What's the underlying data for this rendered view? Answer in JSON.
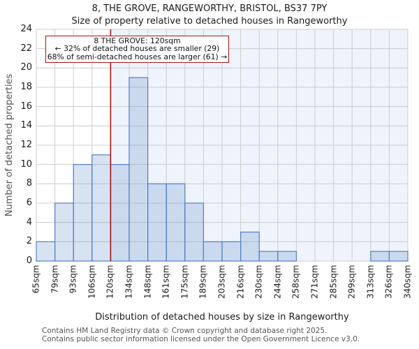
{
  "chart_data": {
    "type": "bar",
    "title": "8, THE GROVE, RANGEWORTHY, BRISTOL, BS37 7PY",
    "subtitle": "Size of property relative to detached houses in Rangeworthy",
    "xlabel": "Distribution of detached houses by size in Rangeworthy",
    "ylabel": "Number of detached properties",
    "bin_edges": [
      "65sqm",
      "79sqm",
      "93sqm",
      "106sqm",
      "120sqm",
      "134sqm",
      "148sqm",
      "161sqm",
      "175sqm",
      "189sqm",
      "203sqm",
      "216sqm",
      "230sqm",
      "244sqm",
      "258sqm",
      "271sqm",
      "285sqm",
      "299sqm",
      "313sqm",
      "326sqm",
      "340sqm"
    ],
    "values": [
      2,
      6,
      10,
      11,
      10,
      19,
      8,
      8,
      6,
      2,
      2,
      3,
      1,
      1,
      0,
      0,
      0,
      0,
      1,
      1
    ],
    "yticks": [
      0,
      2,
      4,
      6,
      8,
      10,
      12,
      14,
      16,
      18,
      20,
      22,
      24
    ],
    "ylim": [
      0,
      24
    ],
    "grid": true,
    "legend": null,
    "marker": {
      "size_label": "120sqm",
      "shade_side": "right"
    },
    "annotation": {
      "line1": "8 THE GROVE: 120sqm",
      "line2": "← 32% of detached houses are smaller (29)",
      "line3": "68% of semi-detached houses are larger (61) →"
    },
    "colors": {
      "bar_fill": "rgba(79,129,197,0.22)",
      "bar_stroke": "#4f81c5",
      "shade": "#eff3fb",
      "gridline": "#cccccc",
      "marker_line": "#aa1111",
      "annotation_border": "#aa1111",
      "muted_text": "#555555"
    }
  },
  "footer": {
    "line1": "Contains HM Land Registry data © Crown copyright and database right 2025.",
    "line2": "Contains public sector information licensed under the Open Government Licence v3.0."
  }
}
